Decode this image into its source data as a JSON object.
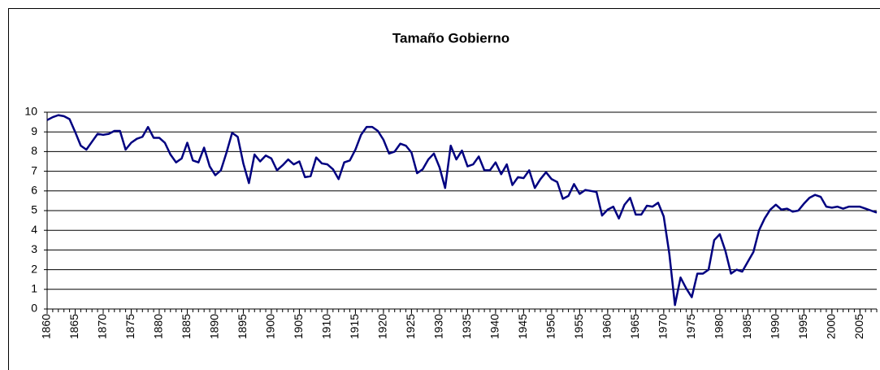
{
  "chart_data": {
    "type": "line",
    "title": "Tamaño Gobierno",
    "color": "#000080",
    "grid": true,
    "ylim": [
      0,
      10
    ],
    "yticks": [
      0,
      1,
      2,
      3,
      4,
      5,
      6,
      7,
      8,
      9,
      10
    ],
    "xlim": [
      1860,
      2008
    ],
    "xticks": [
      1860,
      1865,
      1870,
      1875,
      1880,
      1885,
      1890,
      1895,
      1900,
      1905,
      1910,
      1915,
      1920,
      1925,
      1930,
      1935,
      1940,
      1945,
      1950,
      1955,
      1960,
      1965,
      1970,
      1975,
      1980,
      1985,
      1990,
      1995,
      2000,
      2005
    ],
    "x": [
      1860,
      1861,
      1862,
      1863,
      1864,
      1865,
      1866,
      1867,
      1868,
      1869,
      1870,
      1871,
      1872,
      1873,
      1874,
      1875,
      1876,
      1877,
      1878,
      1879,
      1880,
      1881,
      1882,
      1883,
      1884,
      1885,
      1886,
      1887,
      1888,
      1889,
      1890,
      1891,
      1892,
      1893,
      1894,
      1895,
      1896,
      1897,
      1898,
      1899,
      1900,
      1901,
      1902,
      1903,
      1904,
      1905,
      1906,
      1907,
      1908,
      1909,
      1910,
      1911,
      1912,
      1913,
      1914,
      1915,
      1916,
      1917,
      1918,
      1919,
      1920,
      1921,
      1922,
      1923,
      1924,
      1925,
      1926,
      1927,
      1928,
      1929,
      1930,
      1931,
      1932,
      1933,
      1934,
      1935,
      1936,
      1937,
      1938,
      1939,
      1940,
      1941,
      1942,
      1943,
      1944,
      1945,
      1946,
      1947,
      1948,
      1949,
      1950,
      1951,
      1952,
      1953,
      1954,
      1955,
      1956,
      1957,
      1958,
      1959,
      1960,
      1961,
      1962,
      1963,
      1964,
      1965,
      1966,
      1967,
      1968,
      1969,
      1970,
      1971,
      1972,
      1973,
      1974,
      1975,
      1976,
      1977,
      1978,
      1979,
      1980,
      1981,
      1982,
      1983,
      1984,
      1985,
      1986,
      1987,
      1988,
      1989,
      1990,
      1991,
      1992,
      1993,
      1994,
      1995,
      1996,
      1997,
      1998,
      1999,
      2000,
      2001,
      2002,
      2003,
      2004,
      2005,
      2006,
      2007,
      2008
    ],
    "values": [
      9.6,
      9.75,
      9.85,
      9.8,
      9.65,
      9.0,
      8.3,
      8.1,
      8.5,
      8.9,
      8.85,
      8.9,
      9.05,
      9.05,
      8.1,
      8.45,
      8.65,
      8.75,
      9.25,
      8.7,
      8.7,
      8.45,
      7.85,
      7.45,
      7.65,
      8.45,
      7.55,
      7.45,
      8.2,
      7.25,
      6.8,
      7.05,
      7.95,
      8.95,
      8.75,
      7.4,
      6.4,
      7.85,
      7.5,
      7.8,
      7.65,
      7.05,
      7.3,
      7.6,
      7.35,
      7.5,
      6.7,
      6.75,
      7.7,
      7.4,
      7.35,
      7.1,
      6.6,
      7.45,
      7.55,
      8.1,
      8.85,
      9.25,
      9.25,
      9.05,
      8.6,
      7.9,
      8.0,
      8.4,
      8.3,
      7.95,
      6.9,
      7.1,
      7.6,
      7.9,
      7.2,
      6.15,
      8.3,
      7.6,
      8.05,
      7.25,
      7.35,
      7.75,
      7.05,
      7.05,
      7.45,
      6.85,
      7.35,
      6.3,
      6.7,
      6.65,
      7.05,
      6.15,
      6.6,
      6.95,
      6.6,
      6.45,
      5.6,
      5.75,
      6.35,
      5.85,
      6.05,
      6.0,
      5.95,
      4.75,
      5.05,
      5.2,
      4.6,
      5.3,
      5.65,
      4.8,
      4.8,
      5.25,
      5.2,
      5.4,
      4.7,
      2.8,
      0.2,
      1.6,
      1.05,
      0.6,
      1.8,
      1.8,
      2.0,
      3.5,
      3.8,
      2.95,
      1.8,
      2.0,
      1.9,
      2.4,
      2.9,
      4.0,
      4.6,
      5.05,
      5.3,
      5.05,
      5.1,
      4.95,
      5.0,
      5.35,
      5.65,
      5.8,
      5.7,
      5.2,
      5.15,
      5.2,
      5.1,
      5.2,
      5.2,
      5.2,
      5.1,
      5.0,
      4.9
    ]
  }
}
